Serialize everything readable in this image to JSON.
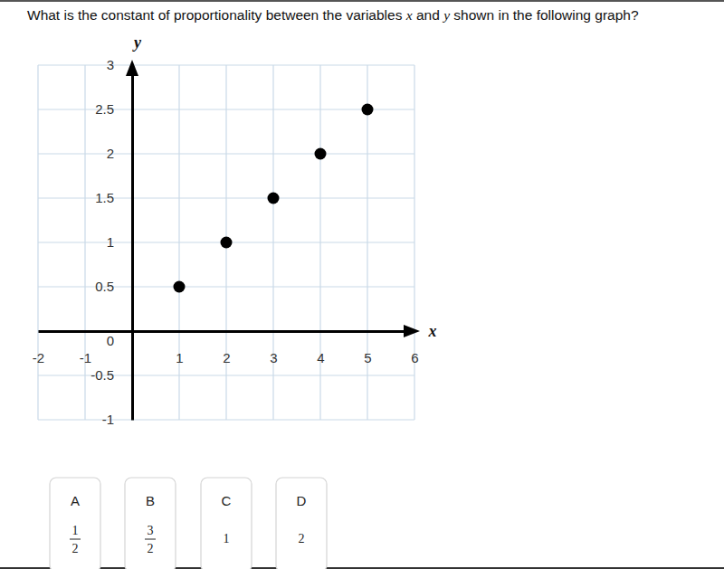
{
  "question": [
    "What is the constant of proportionality between the variables ",
    "x",
    " and ",
    "y",
    " shown in the following graph?"
  ],
  "chart_data": {
    "type": "scatter",
    "x_label": "x",
    "y_label": "y",
    "x": [
      1,
      2,
      3,
      4,
      5
    ],
    "values": [
      0.5,
      1,
      1.5,
      2,
      2.5
    ],
    "color": "#000000",
    "marker": "circle",
    "xlim": [
      -2,
      6
    ],
    "xticks": [
      -2,
      -1,
      1,
      2,
      3,
      4,
      5,
      6
    ],
    "ylim": [
      -1,
      3
    ],
    "yticks": [
      -1,
      -0.5,
      0,
      0.5,
      1,
      1.5,
      2,
      2.5,
      3
    ],
    "grid": true
  },
  "choices": [
    {
      "letter": "A",
      "numerator": 1,
      "denominator": 2
    },
    {
      "letter": "B",
      "numerator": 3,
      "denominator": 2
    },
    {
      "letter": "C",
      "value": 1
    },
    {
      "letter": "D",
      "value": 2
    }
  ]
}
